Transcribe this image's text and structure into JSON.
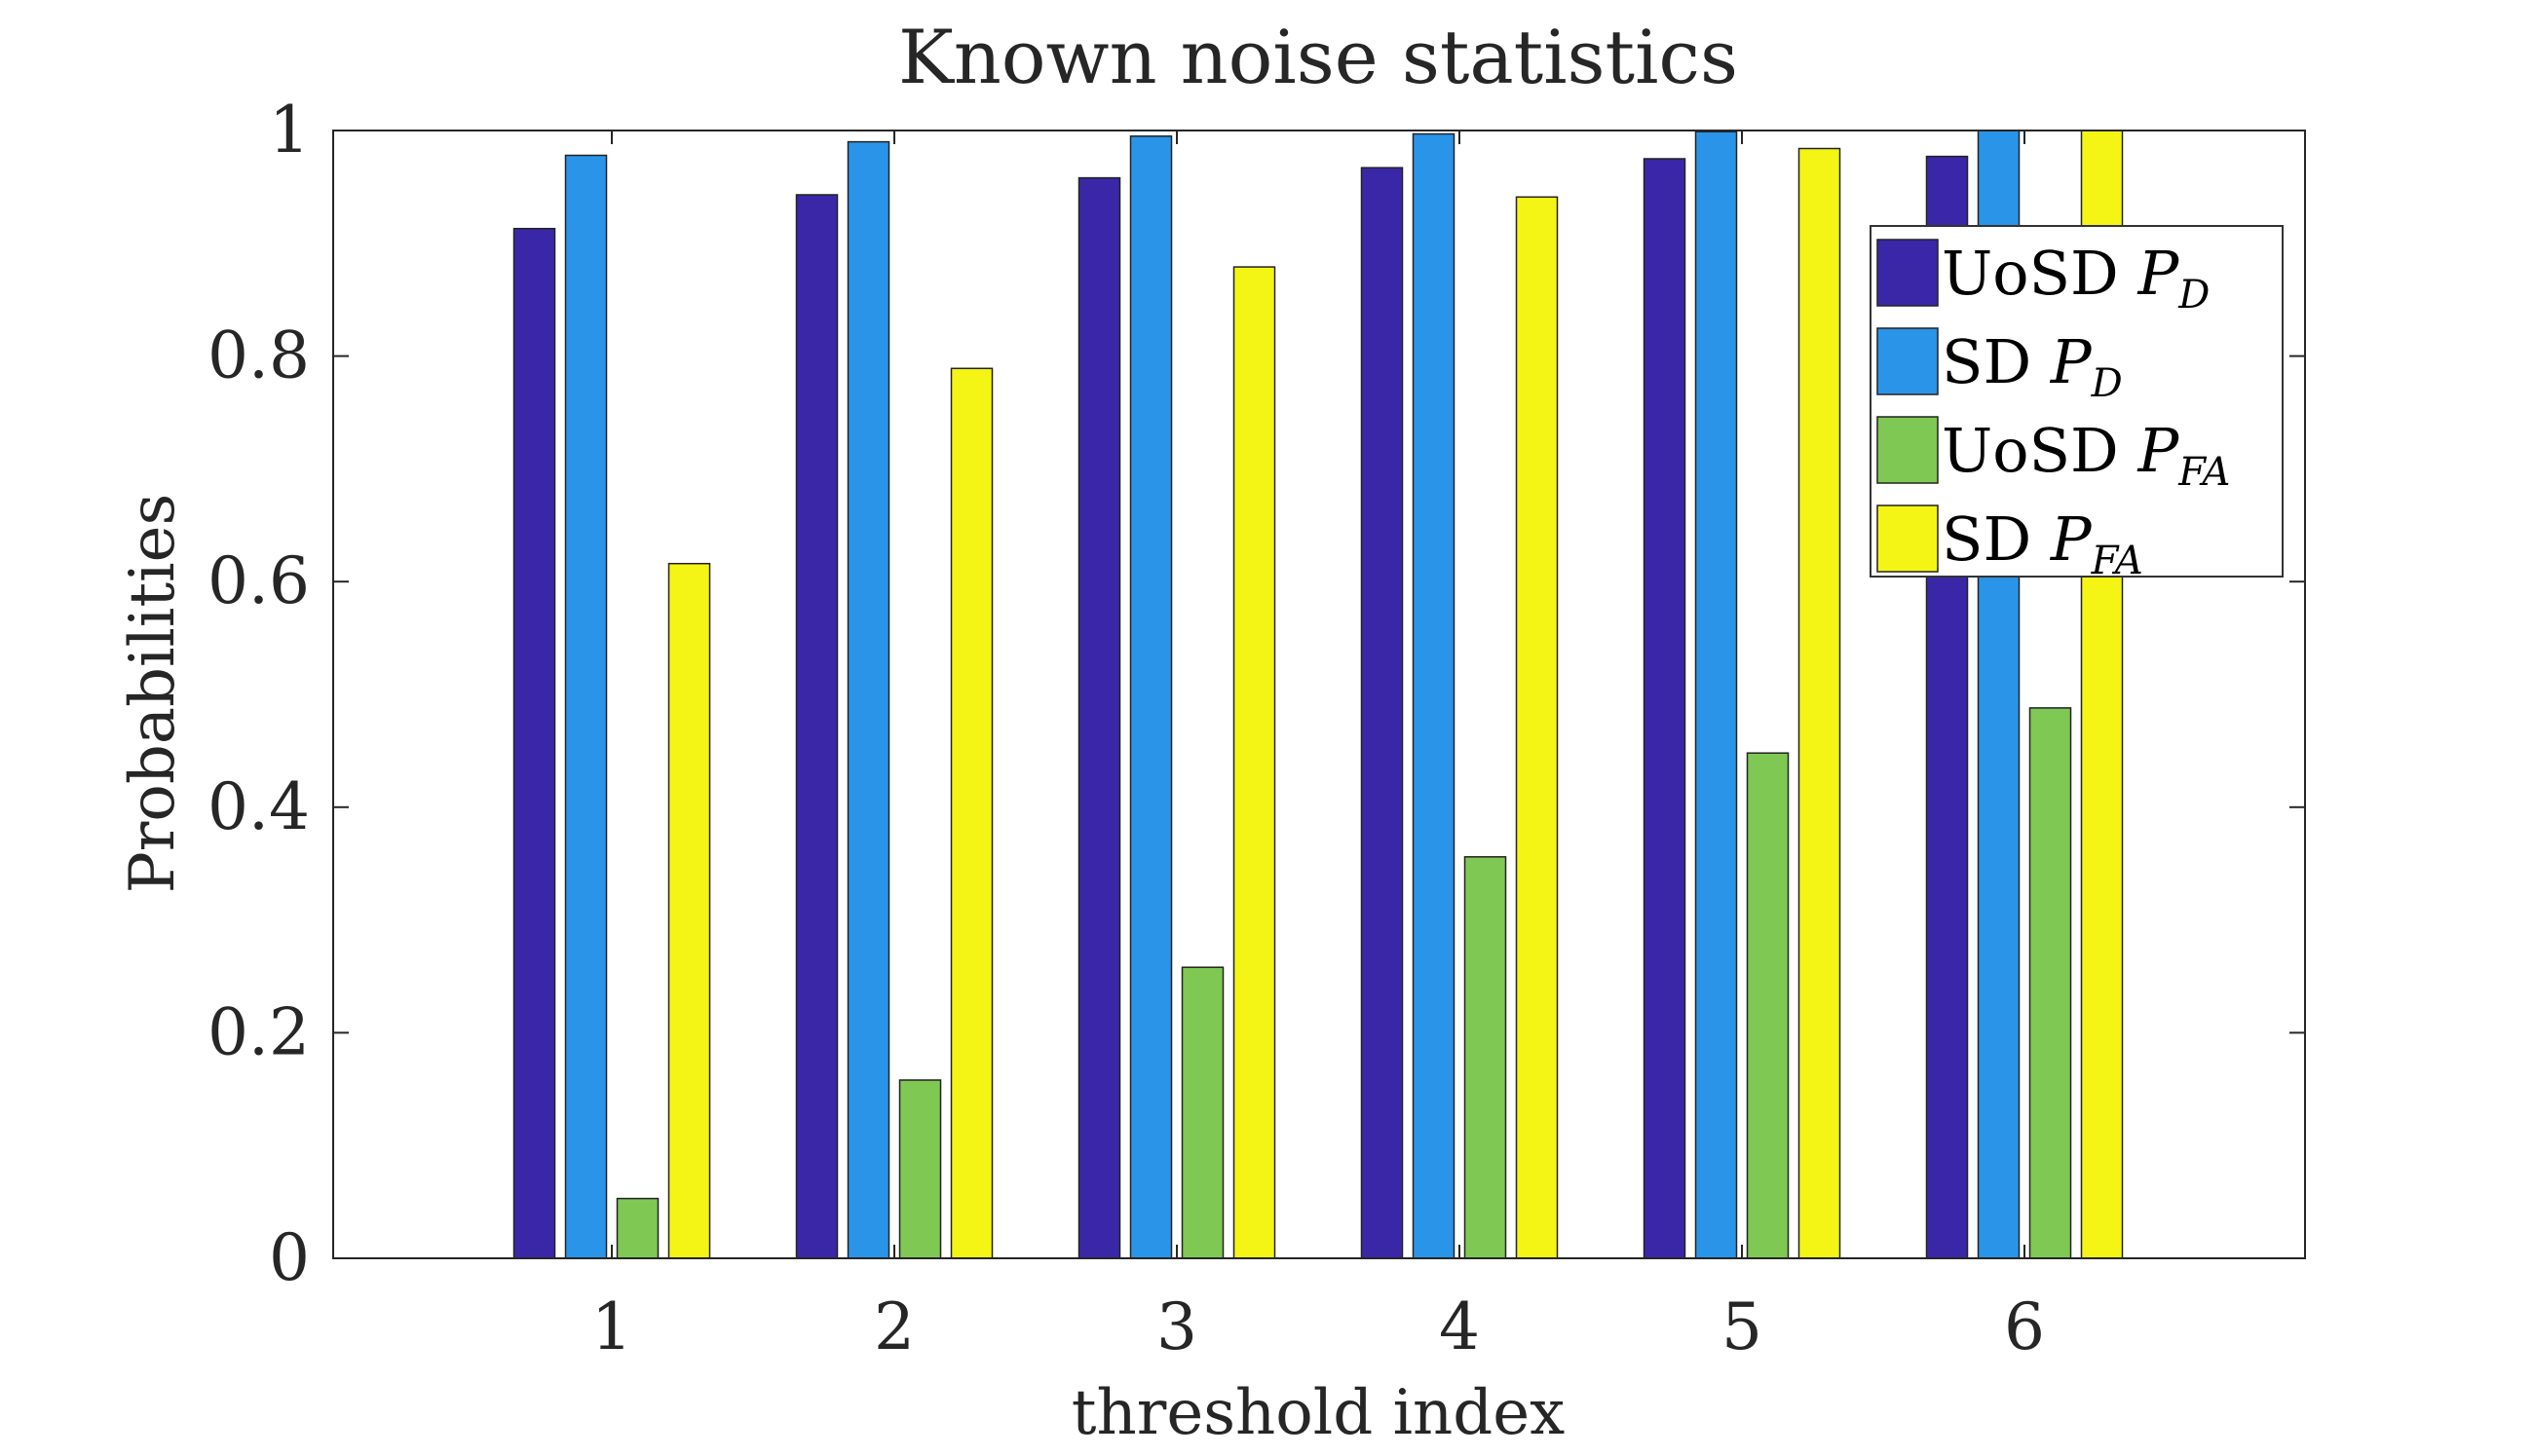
{
  "chart_data": {
    "type": "bar",
    "title": "Known noise statistics",
    "xlabel": "threshold index",
    "ylabel": "Probabilities",
    "categories": [
      "1",
      "2",
      "3",
      "4",
      "5",
      "6"
    ],
    "ylim": [
      0,
      1
    ],
    "yticks": [
      "0",
      "0.2",
      "0.4",
      "0.6",
      "0.8",
      "1"
    ],
    "grid": false,
    "legend_position": "top-right",
    "series": [
      {
        "name": "UoSD P_D",
        "legend_main": "UoSD ",
        "legend_var": "P",
        "legend_sub": "D",
        "color": "#3a27a8",
        "values": [
          0.913,
          0.943,
          0.958,
          0.967,
          0.975,
          0.977
        ]
      },
      {
        "name": "SD P_D",
        "legend_main": "SD ",
        "legend_var": "P",
        "legend_sub": "D",
        "color": "#2a94e8",
        "values": [
          0.978,
          0.99,
          0.995,
          0.997,
          0.999,
          1.0
        ]
      },
      {
        "name": "UoSD P_FA",
        "legend_main": "UoSD ",
        "legend_var": "P",
        "legend_sub": "FA",
        "color": "#7fc854",
        "values": [
          0.053,
          0.158,
          0.258,
          0.356,
          0.448,
          0.488
        ]
      },
      {
        "name": "SD P_FA",
        "legend_main": "SD ",
        "legend_var": "P",
        "legend_sub": "FA",
        "color": "#f5f515",
        "values": [
          0.616,
          0.789,
          0.879,
          0.941,
          0.984,
          1.0
        ]
      }
    ]
  }
}
